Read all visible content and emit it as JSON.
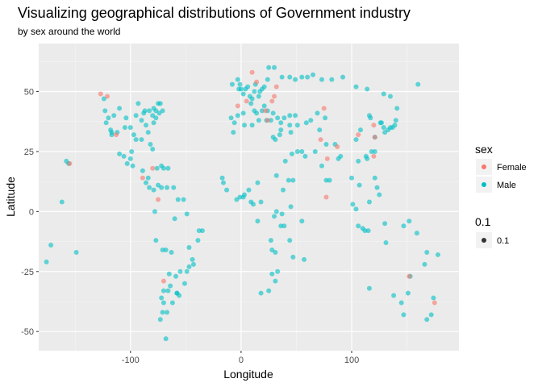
{
  "chart_data": {
    "type": "scatter",
    "title": "Visualizing geographical distributions of Government industry",
    "subtitle": "by sex around the world",
    "xlabel": "Longitude",
    "ylabel": "Latitude",
    "xlim": [
      -183,
      197
    ],
    "ylim": [
      -58,
      70
    ],
    "x_ticks": [
      -100,
      0,
      100
    ],
    "x_tick_labels": [
      "-100",
      "0",
      "100"
    ],
    "y_ticks": [
      -50,
      -25,
      0,
      25,
      50
    ],
    "y_tick_labels": [
      "-50",
      "-25",
      "0",
      "25",
      "50"
    ],
    "grid": true,
    "legend_position": "right",
    "point_alpha": 0.6,
    "legend": {
      "color_title": "sex",
      "color_entries": [
        {
          "label": "Female",
          "color": "#F8766D"
        },
        {
          "label": "Male",
          "color": "#00BFC4"
        }
      ],
      "alpha_title": "0.1",
      "alpha_entries": [
        {
          "label": "0.1",
          "color": "#333333"
        }
      ]
    },
    "series": [
      {
        "name": "Female",
        "color": "#F8766D",
        "points": [
          [
            -127,
            49
          ],
          [
            -121,
            48
          ],
          [
            -113,
            32
          ],
          [
            -155,
            20
          ],
          [
            -80,
            18
          ],
          [
            -89,
            14
          ],
          [
            -75,
            5
          ],
          [
            -70,
            -29
          ],
          [
            -3,
            44
          ],
          [
            5,
            46
          ],
          [
            30,
            48
          ],
          [
            28,
            46
          ],
          [
            22,
            42
          ],
          [
            75,
            43
          ],
          [
            72,
            30
          ],
          [
            78,
            22
          ],
          [
            77,
            6
          ],
          [
            106,
            32
          ],
          [
            120,
            36
          ],
          [
            121,
            31
          ],
          [
            120,
            23
          ],
          [
            87,
            27
          ],
          [
            152,
            -27
          ],
          [
            175,
            -38
          ],
          [
            10,
            58
          ],
          [
            14,
            54
          ],
          [
            32,
            52
          ],
          [
            24,
            38
          ]
        ]
      },
      {
        "name": "Male",
        "color": "#00BFC4",
        "points": [
          [
            -158,
            21
          ],
          [
            -156,
            20
          ],
          [
            -162,
            4
          ],
          [
            -176,
            -21
          ],
          [
            -172,
            -14
          ],
          [
            -124,
            47
          ],
          [
            -122,
            37
          ],
          [
            -118,
            34
          ],
          [
            -117,
            33
          ],
          [
            -112,
            33
          ],
          [
            -104,
            39
          ],
          [
            -97,
            32
          ],
          [
            -95,
            30
          ],
          [
            -90,
            30
          ],
          [
            -87,
            42
          ],
          [
            -84,
            33
          ],
          [
            -80,
            26
          ],
          [
            -77,
            39
          ],
          [
            -74,
            41
          ],
          [
            -71,
            42
          ],
          [
            -88,
            41
          ],
          [
            -93,
            45
          ],
          [
            -83,
            42
          ],
          [
            -79,
            43
          ],
          [
            -75,
            45
          ],
          [
            -73,
            45
          ],
          [
            -80,
            40
          ],
          [
            -86,
            36
          ],
          [
            -90,
            38
          ],
          [
            -95,
            40
          ],
          [
            -100,
            35
          ],
          [
            -105,
            35
          ],
          [
            -110,
            43
          ],
          [
            -115,
            40
          ],
          [
            -120,
            39
          ],
          [
            -123,
            42
          ],
          [
            -77,
            42
          ],
          [
            -79,
            37
          ],
          [
            -82,
            28
          ],
          [
            -98,
            19
          ],
          [
            -99,
            25
          ],
          [
            -103,
            20
          ],
          [
            -106,
            23
          ],
          [
            -110,
            24
          ],
          [
            -117,
            32
          ],
          [
            -100,
            22
          ],
          [
            -89,
            17
          ],
          [
            -84,
            14
          ],
          [
            -86,
            12
          ],
          [
            -83,
            10
          ],
          [
            -79,
            9
          ],
          [
            -75,
            11
          ],
          [
            -72,
            10
          ],
          [
            -67,
            10
          ],
          [
            -61,
            10
          ],
          [
            -66,
            18
          ],
          [
            -70,
            18
          ],
          [
            -72,
            19
          ],
          [
            -76,
            18
          ],
          [
            -78,
            0
          ],
          [
            -77,
            -12
          ],
          [
            -71,
            -16
          ],
          [
            -68,
            -16
          ],
          [
            -58,
            -34
          ],
          [
            -64,
            -31
          ],
          [
            -56,
            -35
          ],
          [
            -70,
            -33
          ],
          [
            -72,
            -36
          ],
          [
            -71,
            -42
          ],
          [
            -68,
            -53
          ],
          [
            -51,
            -30
          ],
          [
            -47,
            -23
          ],
          [
            -43,
            -22
          ],
          [
            -44,
            -20
          ],
          [
            -38,
            -8
          ],
          [
            -35,
            -8
          ],
          [
            -49,
            -1
          ],
          [
            -60,
            -3
          ],
          [
            -57,
            5
          ],
          [
            -52,
            5
          ],
          [
            -47,
            -15
          ],
          [
            -55,
            -25
          ],
          [
            -63,
            -17
          ],
          [
            -65,
            -26
          ],
          [
            -49,
            -25
          ],
          [
            -39,
            -12
          ],
          [
            -9,
            39
          ],
          [
            -8,
            53
          ],
          [
            -3,
            55
          ],
          [
            -2,
            51
          ],
          [
            -1,
            53
          ],
          [
            0,
            51
          ],
          [
            2,
            49
          ],
          [
            4,
            51
          ],
          [
            6,
            52
          ],
          [
            8,
            48
          ],
          [
            10,
            47
          ],
          [
            12,
            50
          ],
          [
            13,
            53
          ],
          [
            16,
            48
          ],
          [
            17,
            50
          ],
          [
            19,
            51
          ],
          [
            21,
            52
          ],
          [
            24,
            55
          ],
          [
            25,
            60
          ],
          [
            30,
            60
          ],
          [
            37,
            56
          ],
          [
            44,
            56
          ],
          [
            49,
            55
          ],
          [
            55,
            56
          ],
          [
            60,
            56
          ],
          [
            65,
            57
          ],
          [
            73,
            55
          ],
          [
            82,
            55
          ],
          [
            92,
            56
          ],
          [
            104,
            52
          ],
          [
            114,
            51
          ],
          [
            129,
            49
          ],
          [
            135,
            48
          ],
          [
            -3,
            40
          ],
          [
            -6,
            37
          ],
          [
            2,
            41
          ],
          [
            9,
            45
          ],
          [
            12,
            42
          ],
          [
            14,
            41
          ],
          [
            16,
            38
          ],
          [
            19,
            42
          ],
          [
            21,
            44
          ],
          [
            24,
            42
          ],
          [
            23,
            38
          ],
          [
            27,
            38
          ],
          [
            29,
            41
          ],
          [
            33,
            39
          ],
          [
            36,
            37
          ],
          [
            39,
            39
          ],
          [
            44,
            40
          ],
          [
            49,
            40
          ],
          [
            51,
            36
          ],
          [
            45,
            33
          ],
          [
            44,
            36
          ],
          [
            35,
            32
          ],
          [
            31,
            30
          ],
          [
            29,
            31
          ],
          [
            36,
            34
          ],
          [
            46,
            24
          ],
          [
            40,
            21
          ],
          [
            55,
            25
          ],
          [
            58,
            23
          ],
          [
            51,
            25
          ],
          [
            67,
            25
          ],
          [
            73,
            19
          ],
          [
            77,
            13
          ],
          [
            80,
            13
          ],
          [
            88,
            22
          ],
          [
            90,
            23
          ],
          [
            77,
            28
          ],
          [
            85,
            28
          ],
          [
            71,
            34
          ],
          [
            69,
            41
          ],
          [
            76,
            39
          ],
          [
            63,
            38
          ],
          [
            59,
            37
          ],
          [
            -7,
            33
          ],
          [
            3,
            36
          ],
          [
            10,
            36
          ],
          [
            -17,
            14
          ],
          [
            -16,
            12
          ],
          [
            -13,
            9
          ],
          [
            -4,
            5
          ],
          [
            -1,
            6
          ],
          [
            2,
            6
          ],
          [
            3,
            7
          ],
          [
            7,
            9
          ],
          [
            9,
            4
          ],
          [
            11,
            3
          ],
          [
            15,
            12
          ],
          [
            18,
            4
          ],
          [
            15,
            -4
          ],
          [
            27,
            -12
          ],
          [
            28,
            -26
          ],
          [
            31,
            -29
          ],
          [
            18,
            -34
          ],
          [
            25,
            -33
          ],
          [
            28,
            -16
          ],
          [
            31,
            -17
          ],
          [
            33,
            -25
          ],
          [
            36,
            -6
          ],
          [
            37,
            -1
          ],
          [
            39,
            -6
          ],
          [
            47,
            -19
          ],
          [
            44,
            -12
          ],
          [
            32,
            0
          ],
          [
            30,
            -2
          ],
          [
            38,
            9
          ],
          [
            32,
            15
          ],
          [
            45,
            2
          ],
          [
            47,
            13
          ],
          [
            43,
            13
          ],
          [
            57,
            -20
          ],
          [
            55,
            -4
          ],
          [
            100,
            14
          ],
          [
            101,
            3
          ],
          [
            104,
            1
          ],
          [
            106,
            -6
          ],
          [
            107,
            11
          ],
          [
            106,
            21
          ],
          [
            110,
            -7
          ],
          [
            112,
            -8
          ],
          [
            115,
            -8
          ],
          [
            116,
            4
          ],
          [
            121,
            14
          ],
          [
            123,
            10
          ],
          [
            125,
            7
          ],
          [
            114,
            22
          ],
          [
            116,
            40
          ],
          [
            117,
            39
          ],
          [
            121,
            31
          ],
          [
            113,
            23
          ],
          [
            118,
            25
          ],
          [
            104,
            30
          ],
          [
            108,
            34
          ],
          [
            126,
            37
          ],
          [
            127,
            37
          ],
          [
            129,
            35
          ],
          [
            135,
            35
          ],
          [
            139,
            36
          ],
          [
            140,
            38
          ],
          [
            141,
            43
          ],
          [
            130,
            33
          ],
          [
            133,
            34
          ],
          [
            137,
            35
          ],
          [
            121,
            25
          ],
          [
            -58,
            -34
          ],
          [
            -62,
            -38
          ],
          [
            -66,
            -33
          ],
          [
            -70,
            -38
          ],
          [
            -73,
            -45
          ],
          [
            -67,
            -42
          ],
          [
            -59,
            -27
          ],
          [
            151,
            -34
          ],
          [
            145,
            -38
          ],
          [
            153,
            -27
          ],
          [
            138,
            -35
          ],
          [
            116,
            -32
          ],
          [
            147,
            -43
          ],
          [
            131,
            -13
          ],
          [
            130,
            -5
          ],
          [
            174,
            -36
          ],
          [
            172,
            -43
          ],
          [
            168,
            -45
          ],
          [
            159,
            -9
          ],
          [
            178,
            -18
          ],
          [
            166,
            -22
          ],
          [
            -149,
            -17
          ],
          [
            147,
            -6
          ],
          [
            152,
            -4
          ],
          [
            160,
            53
          ],
          [
            168,
            -17
          ]
        ]
      }
    ]
  }
}
